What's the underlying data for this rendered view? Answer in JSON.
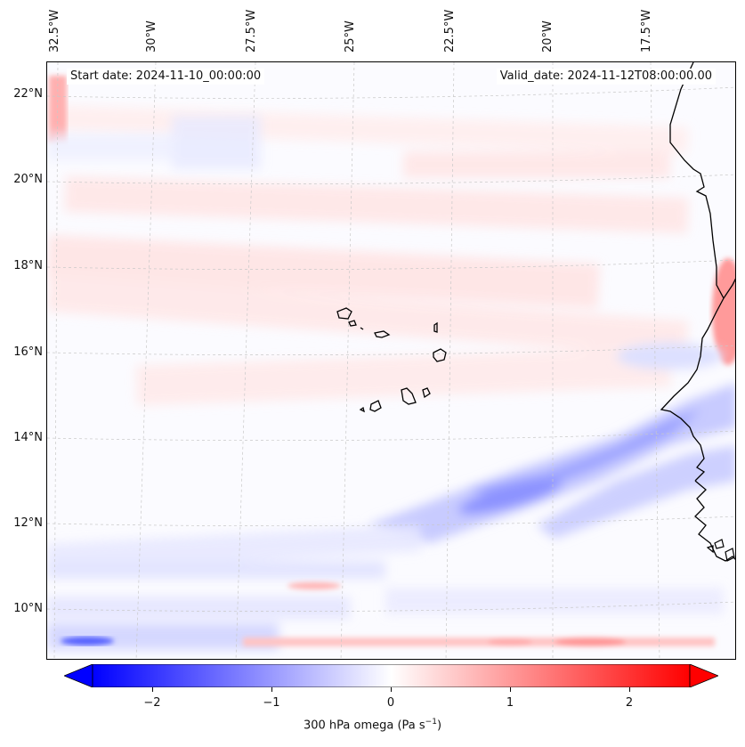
{
  "map": {
    "start_date": "Start date: 2024-11-10_00:00:00",
    "valid_date": "Valid_date: 2024-11-12T08:00:00.00",
    "lon_labels": [
      "32.5°W",
      "30°W",
      "27.5°W",
      "25°W",
      "22.5°W",
      "20°W",
      "17.5°W"
    ],
    "lat_labels": [
      "22°N",
      "20°N",
      "18°N",
      "16°N",
      "14°N",
      "12°N",
      "10°N"
    ],
    "field": "300 hPa omega",
    "colors": {
      "negative": "#0000ff",
      "positive": "#ff0000",
      "zero": "#ffffff",
      "coast": "#000000",
      "grid": "#b0b0b0"
    }
  },
  "colorbar": {
    "ticks": [
      "−2",
      "−1",
      "0",
      "1",
      "2"
    ],
    "label_main": "300 hPa omega (Pa s",
    "label_exp": "−1",
    "label_end": ")",
    "range": [
      -2.5,
      2.5
    ],
    "extend": "both"
  }
}
